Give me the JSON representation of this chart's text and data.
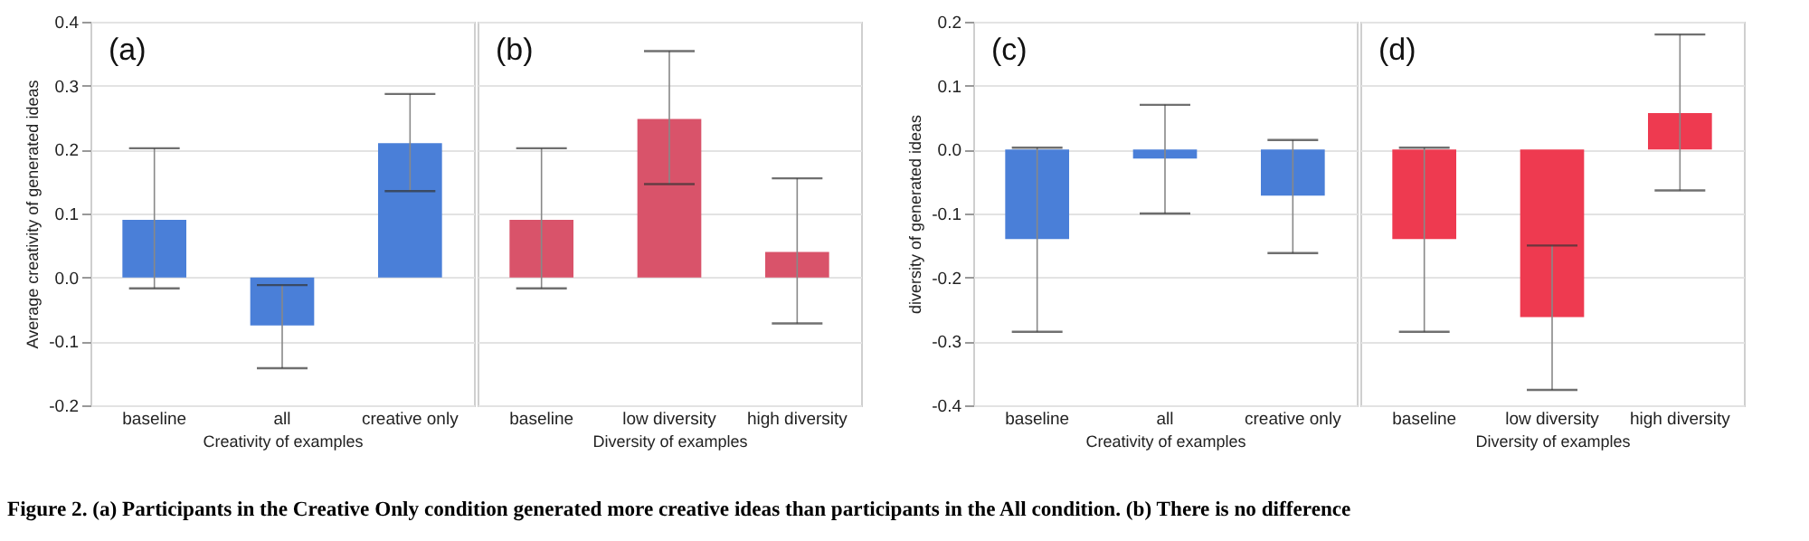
{
  "chart_data": [
    {
      "type": "bar",
      "categories": [
        "baseline",
        "all",
        "creative only"
      ],
      "values": [
        0.09,
        -0.075,
        0.21
      ],
      "color": "#4a7fd8",
      "errors": [
        [
          -0.017,
          0.202
        ],
        [
          -0.142,
          -0.012
        ],
        [
          0.135,
          0.287
        ]
      ],
      "ylim": [
        -0.2,
        0.4
      ],
      "yticks": [
        {
          "value": -0.2,
          "label": "-0.2"
        },
        {
          "value": -0.1,
          "label": "-0.1"
        },
        {
          "value": 0,
          "label": "0.0"
        },
        {
          "value": 0.1,
          "label": "0.1"
        },
        {
          "value": 0.2,
          "label": "0.2"
        },
        {
          "value": 0.3,
          "label": "0.3"
        },
        {
          "value": 0.4,
          "label": "0.4"
        }
      ],
      "grid": "y",
      "xlabel": "Creativity of examples",
      "ylabel": "Average creativity of generated ideas",
      "annotations": [
        "(a)",
        "Figure 2.  (a) Participants in the Creative Only condition generated more creative ideas than participants in the All condition. (b) There is no difference"
      ]
    },
    {
      "type": "bar",
      "categories": [
        "baseline",
        "low diversity",
        "high diversity"
      ],
      "values": [
        0.09,
        0.248,
        0.04
      ],
      "color": "#d9536a",
      "errors": [
        [
          -0.017,
          0.202
        ],
        [
          0.146,
          0.354
        ],
        [
          -0.072,
          0.155
        ]
      ],
      "ylim": [
        -0.2,
        0.4
      ],
      "grid": "y",
      "tick_labels": "x",
      "xlabel": "Diversity of examples",
      "annotations": [
        "(b)"
      ]
    },
    {
      "type": "bar",
      "categories": [
        "baseline",
        "all",
        "creative only"
      ],
      "values": [
        -0.14,
        -0.014,
        -0.072
      ],
      "color": "#4a7fd8",
      "errors": [
        [
          -0.285,
          0.003
        ],
        [
          -0.1,
          0.07
        ],
        [
          -0.162,
          0.015
        ]
      ],
      "ylim": [
        -0.4,
        0.2
      ],
      "yticks": [
        {
          "value": -0.4,
          "label": "-0.4"
        },
        {
          "value": -0.3,
          "label": "-0.3"
        },
        {
          "value": -0.2,
          "label": "-0.2"
        },
        {
          "value": -0.1,
          "label": "-0.1"
        },
        {
          "value": 0,
          "label": "0.0"
        },
        {
          "value": 0.1,
          "label": "0.1"
        },
        {
          "value": 0.2,
          "label": "0.2"
        }
      ],
      "grid": "y",
      "xlabel": "Creativity of examples",
      "ylabel": "diversity of generated ideas",
      "annotations": [
        "(c)"
      ]
    },
    {
      "type": "bar",
      "categories": [
        "baseline",
        "low diversity",
        "high diversity"
      ],
      "values": [
        -0.14,
        -0.262,
        0.057
      ],
      "color": "#ee3a50",
      "errors": [
        [
          -0.285,
          0.003
        ],
        [
          -0.376,
          -0.15
        ],
        [
          -0.064,
          0.18
        ]
      ],
      "ylim": [
        -0.4,
        0.2
      ],
      "grid": "y",
      "tick_labels": "x",
      "xlabel": "Diversity of examples",
      "annotations": [
        "(d)"
      ]
    }
  ]
}
